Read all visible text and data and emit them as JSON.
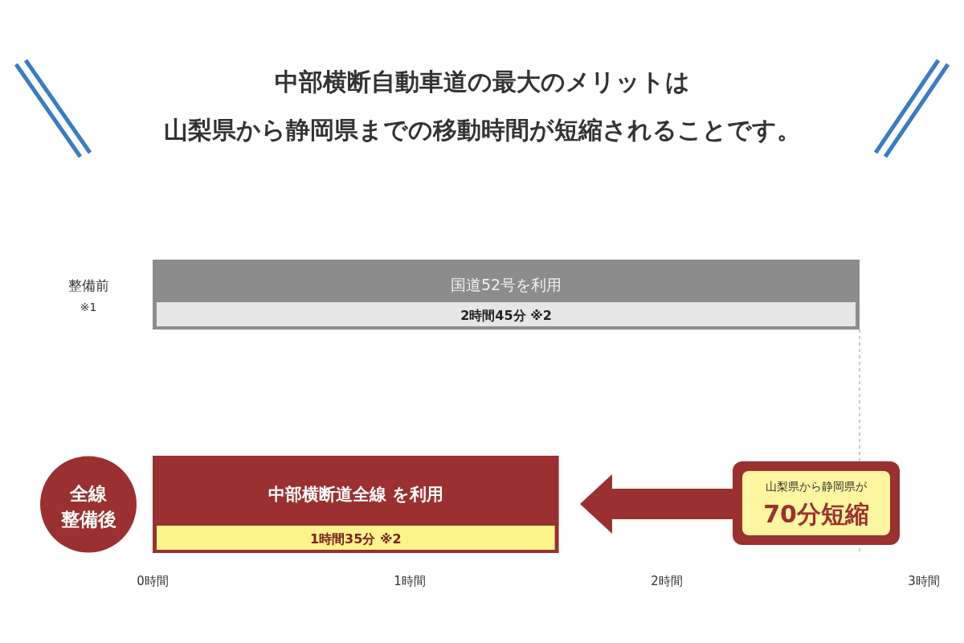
{
  "chart_data": {
    "type": "bar",
    "orientation": "horizontal",
    "title": "中部横断自動車道の最大のメリットは",
    "subtitle": "山梨県から静岡県までの移動時間が短縮されることです。",
    "categories": [
      "整備前 ※1",
      "全線整備後"
    ],
    "values": [
      2.75,
      1.58
    ],
    "colors": [
      "#8c8c8c",
      "#9a3030"
    ],
    "xlim": [
      0,
      3
    ],
    "xticks": [
      {
        "value": 0,
        "label": "0時間"
      },
      {
        "value": 1,
        "label": "1時間"
      },
      {
        "value": 2,
        "label": "2時間"
      },
      {
        "value": 3,
        "label": "3時間"
      }
    ],
    "ref_lines": [
      {
        "axis": "x",
        "value": 2.75,
        "color": "#bbbbbb",
        "line_style": "dashed"
      }
    ],
    "annotations": [
      "国道52号を利用",
      "中部横断道全線 を利用",
      "2時間45分 ※2",
      "1時間35分 ※2",
      "山梨県から静岡県が",
      "70分短縮"
    ],
    "grid": false
  }
}
